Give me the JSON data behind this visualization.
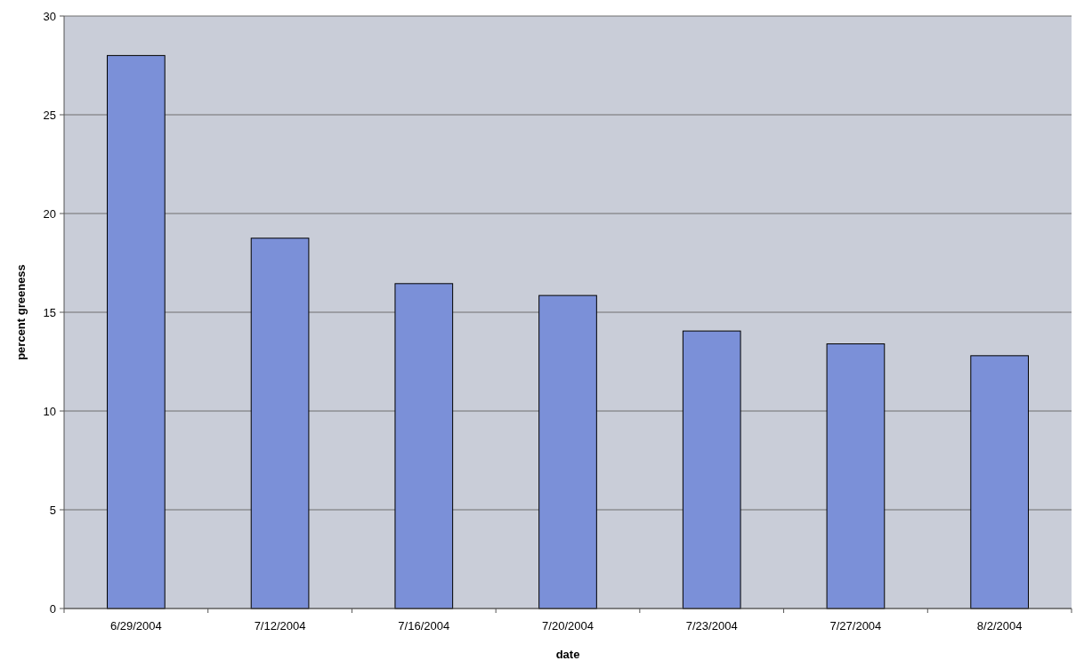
{
  "chart_data": {
    "type": "bar",
    "xlabel": "date",
    "ylabel": "percent greeness",
    "categories": [
      "6/29/2004",
      "7/12/2004",
      "7/16/2004",
      "7/20/2004",
      "7/23/2004",
      "7/27/2004",
      "8/2/2004"
    ],
    "values": [
      28,
      18.75,
      16.45,
      15.85,
      14.05,
      13.4,
      12.8
    ],
    "color": "#7b90d8",
    "ylim": [
      0,
      30
    ],
    "yticks": [
      0,
      5,
      10,
      15,
      20,
      25,
      30
    ],
    "grid": "y"
  }
}
